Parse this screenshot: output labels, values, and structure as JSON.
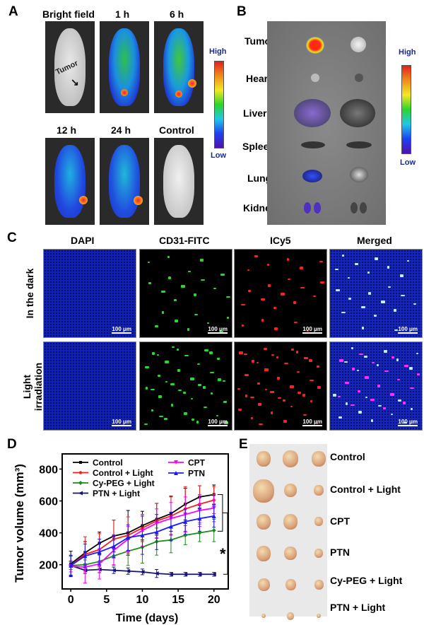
{
  "panelA": {
    "label": "A",
    "titles": [
      "Bright field",
      "1 h",
      "6 h",
      "12 h",
      "24 h",
      "Control"
    ],
    "arrow_text": "Tumor",
    "colorbar": {
      "high": "High",
      "low": "Low"
    }
  },
  "panelB": {
    "label": "B",
    "organs": [
      "Tumor",
      "Heart",
      "Liver",
      "Spleen",
      "Lung",
      "Kidney"
    ],
    "colorbar": {
      "high": "High",
      "low": "Low"
    }
  },
  "panelC": {
    "label": "C",
    "columns": [
      "DAPI",
      "CD31-FITC",
      "ICy5",
      "Merged"
    ],
    "rows": [
      "In the dark",
      "Light\nirradiation"
    ],
    "scalebar": "100 μm"
  },
  "panelD": {
    "label": "D"
  },
  "panelE": {
    "label": "E",
    "groups": [
      "Control",
      "Control + Light",
      "CPT",
      "PTN",
      "Cy-PEG + Light",
      "PTN + Light"
    ]
  },
  "chart_data": {
    "type": "line",
    "xlabel": "Time (days)",
    "ylabel": "Tumor volume (mm³)",
    "xticks": [
      0,
      5,
      10,
      15,
      20
    ],
    "yticks": [
      200,
      400,
      600,
      800
    ],
    "xlim": [
      -1.2,
      22
    ],
    "ylim": [
      48,
      895
    ],
    "x": [
      0,
      2,
      4,
      6,
      8,
      10,
      12,
      14,
      16,
      18,
      20
    ],
    "legend_placement": "top",
    "annotation": "*",
    "series": [
      {
        "name": "Control",
        "color": "#000000",
        "marker": "square",
        "values": [
          205,
          275,
          335,
          380,
          400,
          445,
          485,
          520,
          580,
          625,
          640
        ],
        "error": [
          80,
          70,
          70,
          100,
          140,
          90,
          100,
          110,
          100,
          70,
          60
        ]
      },
      {
        "name": "Control + Light",
        "color": "#ff1a1a",
        "marker": "circle",
        "values": [
          195,
          265,
          295,
          360,
          385,
          430,
          475,
          505,
          550,
          580,
          605
        ],
        "error": [
          25,
          110,
          100,
          120,
          115,
          85,
          110,
          120,
          140,
          115,
          85
        ]
      },
      {
        "name": "Cy-PEG + Light",
        "color": "#1a8c1a",
        "marker": "diamond",
        "values": [
          195,
          200,
          220,
          255,
          285,
          310,
          345,
          355,
          385,
          400,
          415
        ],
        "error": [
          25,
          30,
          40,
          60,
          90,
          100,
          85,
          80,
          60,
          55,
          70
        ]
      },
      {
        "name": "PTN + Light",
        "color": "#141478",
        "marker": "left-triangle",
        "values": [
          195,
          165,
          170,
          165,
          160,
          155,
          145,
          140,
          140,
          140,
          140
        ],
        "error": [
          60,
          20,
          20,
          20,
          20,
          18,
          25,
          12,
          12,
          12,
          12
        ]
      },
      {
        "name": "CPT",
        "color": "#ff00ff",
        "marker": "down-triangle",
        "values": [
          190,
          185,
          205,
          290,
          360,
          415,
          460,
          490,
          515,
          540,
          555
        ],
        "error": [
          35,
          100,
          95,
          90,
          80,
          100,
          90,
          100,
          110,
          100,
          85
        ]
      },
      {
        "name": "PTN",
        "color": "#1a1aff",
        "marker": "up-triangle",
        "values": [
          195,
          255,
          280,
          315,
          370,
          385,
          405,
          440,
          470,
          490,
          505
        ],
        "error": [
          65,
          75,
          80,
          70,
          80,
          120,
          110,
          90,
          80,
          80,
          70
        ]
      }
    ]
  }
}
